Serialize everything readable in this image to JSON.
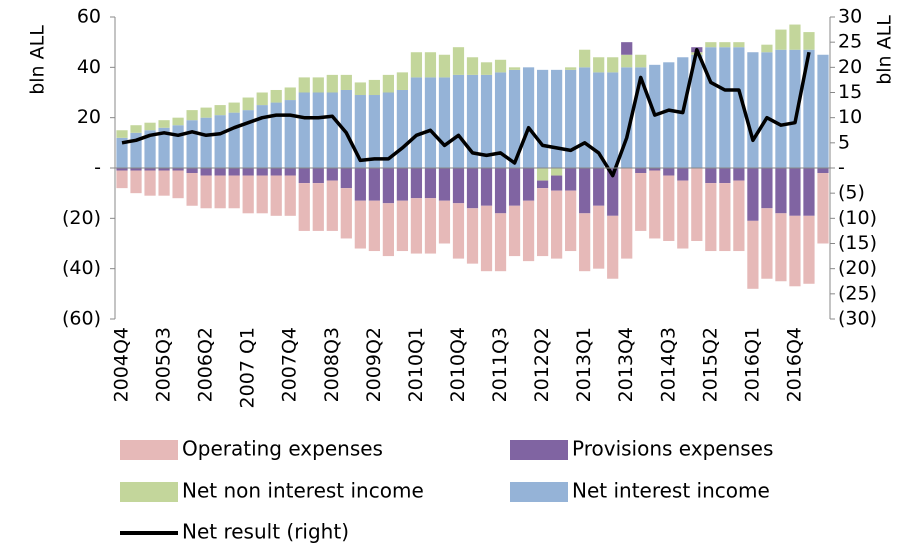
{
  "chart_data": {
    "type": "bar",
    "categories": [
      "2004Q4",
      null,
      null,
      "2005Q3",
      null,
      null,
      "2006Q2",
      null,
      null,
      "2007 Q1",
      null,
      null,
      "2007Q4",
      null,
      null,
      "2008Q3",
      null,
      null,
      "2009Q2",
      null,
      null,
      "2010Q1",
      null,
      null,
      "2010Q4",
      null,
      null,
      "2011Q3",
      null,
      null,
      "2012Q2",
      null,
      null,
      "2013Q1",
      null,
      null,
      "2013Q4",
      null,
      null,
      "2014Q3",
      null,
      null,
      "2015Q2",
      null,
      null,
      "2016Q1",
      null,
      null,
      "2016Q4",
      null,
      null
    ],
    "series": [
      {
        "name": "Operating expenses",
        "color": "#e6b9b8",
        "values": [
          -7,
          -9,
          -10,
          -10,
          -11,
          -13,
          -13,
          -13,
          -13,
          -15,
          -15,
          -16,
          -16,
          -19,
          -19,
          -20,
          -20,
          -19,
          -20,
          -21,
          -20,
          -22,
          -22,
          -17,
          -22,
          -22,
          -26,
          -23,
          -20,
          -24,
          -27,
          -27,
          -24,
          -23,
          -25,
          -25,
          -36,
          -23,
          -27,
          -26,
          -27,
          -29,
          -27,
          -27,
          -28,
          -27,
          -28,
          -27,
          -28,
          -27,
          -28
        ]
      },
      {
        "name": "Provisions expenses",
        "color": "#8064a2",
        "values": [
          -1,
          -1,
          -1,
          -1,
          -1,
          -2,
          -3,
          -3,
          -3,
          -3,
          -3,
          -3,
          -3,
          -6,
          -6,
          -5,
          -8,
          -13,
          -13,
          -14,
          -13,
          -12,
          -12,
          -13,
          -14,
          -16,
          -15,
          -18,
          -15,
          -13,
          -3,
          -6,
          -9,
          -18,
          -15,
          -19,
          5,
          -2,
          -1,
          -3,
          -5,
          2,
          -6,
          -6,
          -5,
          -21,
          -16,
          -18,
          -19,
          -19,
          -2
        ]
      },
      {
        "name": "Net non interest income",
        "color": "#c3d69b",
        "values": [
          3,
          3,
          3,
          3,
          3,
          4,
          4,
          4,
          4,
          5,
          5,
          5,
          5,
          6,
          6,
          7,
          6,
          5,
          6,
          7,
          7,
          10,
          10,
          9,
          11,
          7,
          5,
          5,
          1,
          0,
          -5,
          -3,
          1,
          7,
          6,
          6,
          5,
          5,
          0,
          0,
          0,
          1,
          2,
          2,
          2,
          0,
          3,
          8,
          10,
          7,
          0
        ]
      },
      {
        "name": "Net interest income",
        "color": "#95b3d7",
        "values": [
          12,
          14,
          15,
          16,
          17,
          19,
          20,
          21,
          22,
          23,
          25,
          26,
          27,
          30,
          30,
          30,
          31,
          29,
          29,
          30,
          31,
          36,
          36,
          36,
          37,
          37,
          37,
          38,
          39,
          40,
          39,
          39,
          39,
          40,
          38,
          38,
          40,
          40,
          41,
          42,
          44,
          45,
          48,
          48,
          48,
          46,
          46,
          47,
          47,
          47,
          45
        ]
      },
      {
        "name": "Net result (right)",
        "color": "#000000",
        "type": "line",
        "axis": "y2",
        "values": [
          5,
          5.5,
          6.5,
          7,
          6.5,
          7.2,
          6.5,
          6.8,
          8,
          9,
          10,
          10.5,
          10.5,
          10,
          10,
          10.3,
          7,
          1.5,
          1.8,
          1.8,
          4,
          6.5,
          7.5,
          4.5,
          6.5,
          3,
          2.5,
          3,
          1,
          8,
          4.5,
          4,
          3.5,
          5,
          3,
          -1.5,
          6,
          18,
          10.5,
          11.5,
          11,
          23.5,
          17,
          15.5,
          15.5,
          5.5,
          10,
          8.5,
          9,
          23,
          null
        ]
      }
    ],
    "ylabel": "bln ALL",
    "y2label": "bln ALL",
    "ylim": [
      -60,
      60
    ],
    "yticks": [
      60,
      40,
      20,
      {
        "value": 0,
        "label": "-"
      },
      {
        "value": -20,
        "label": "(20)"
      },
      {
        "value": -40,
        "label": "(40)"
      },
      {
        "value": -60,
        "label": "(60)"
      }
    ],
    "y2lim": [
      -30,
      30
    ],
    "y2ticks": [
      30,
      25,
      20,
      15,
      10,
      5,
      {
        "value": 0,
        "label": "-"
      },
      {
        "value": -5,
        "label": "(5)"
      },
      {
        "value": -10,
        "label": "(10)"
      },
      {
        "value": -15,
        "label": "(15)"
      },
      {
        "value": -20,
        "label": "(20)"
      },
      {
        "value": -25,
        "label": "(25)"
      },
      {
        "value": -30,
        "label": "(30)"
      }
    ],
    "legend": "bottom"
  }
}
